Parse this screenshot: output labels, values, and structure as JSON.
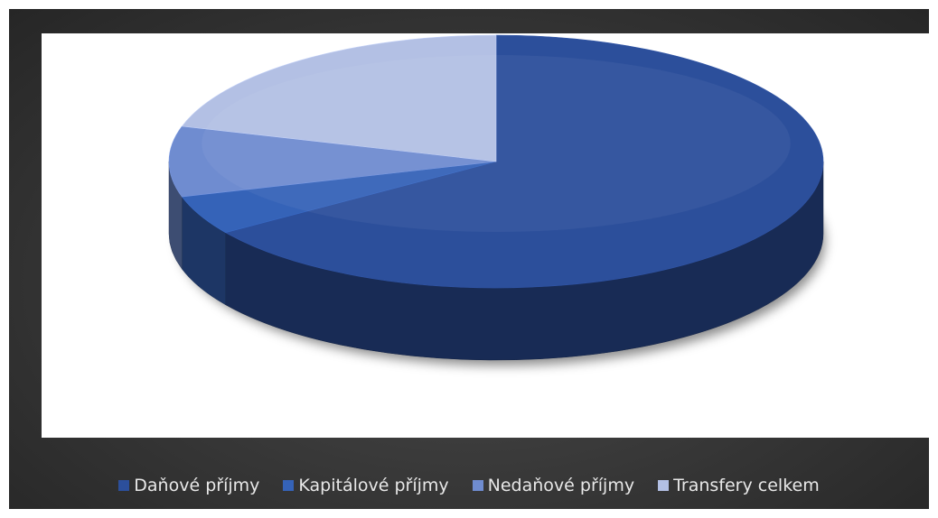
{
  "chart_data": {
    "type": "pie",
    "style": "3d",
    "title": "",
    "categories": [
      "Daňové příjmy",
      "Kapitálové příjmy",
      "Nedaňové příjmy",
      "Transfery celkem"
    ],
    "values": [
      65.5,
      5.0,
      9.0,
      20.5
    ],
    "colors": [
      "#2c4f9b",
      "#3563b8",
      "#6f8cd0",
      "#b3c0e4"
    ],
    "legend_position": "bottom"
  }
}
